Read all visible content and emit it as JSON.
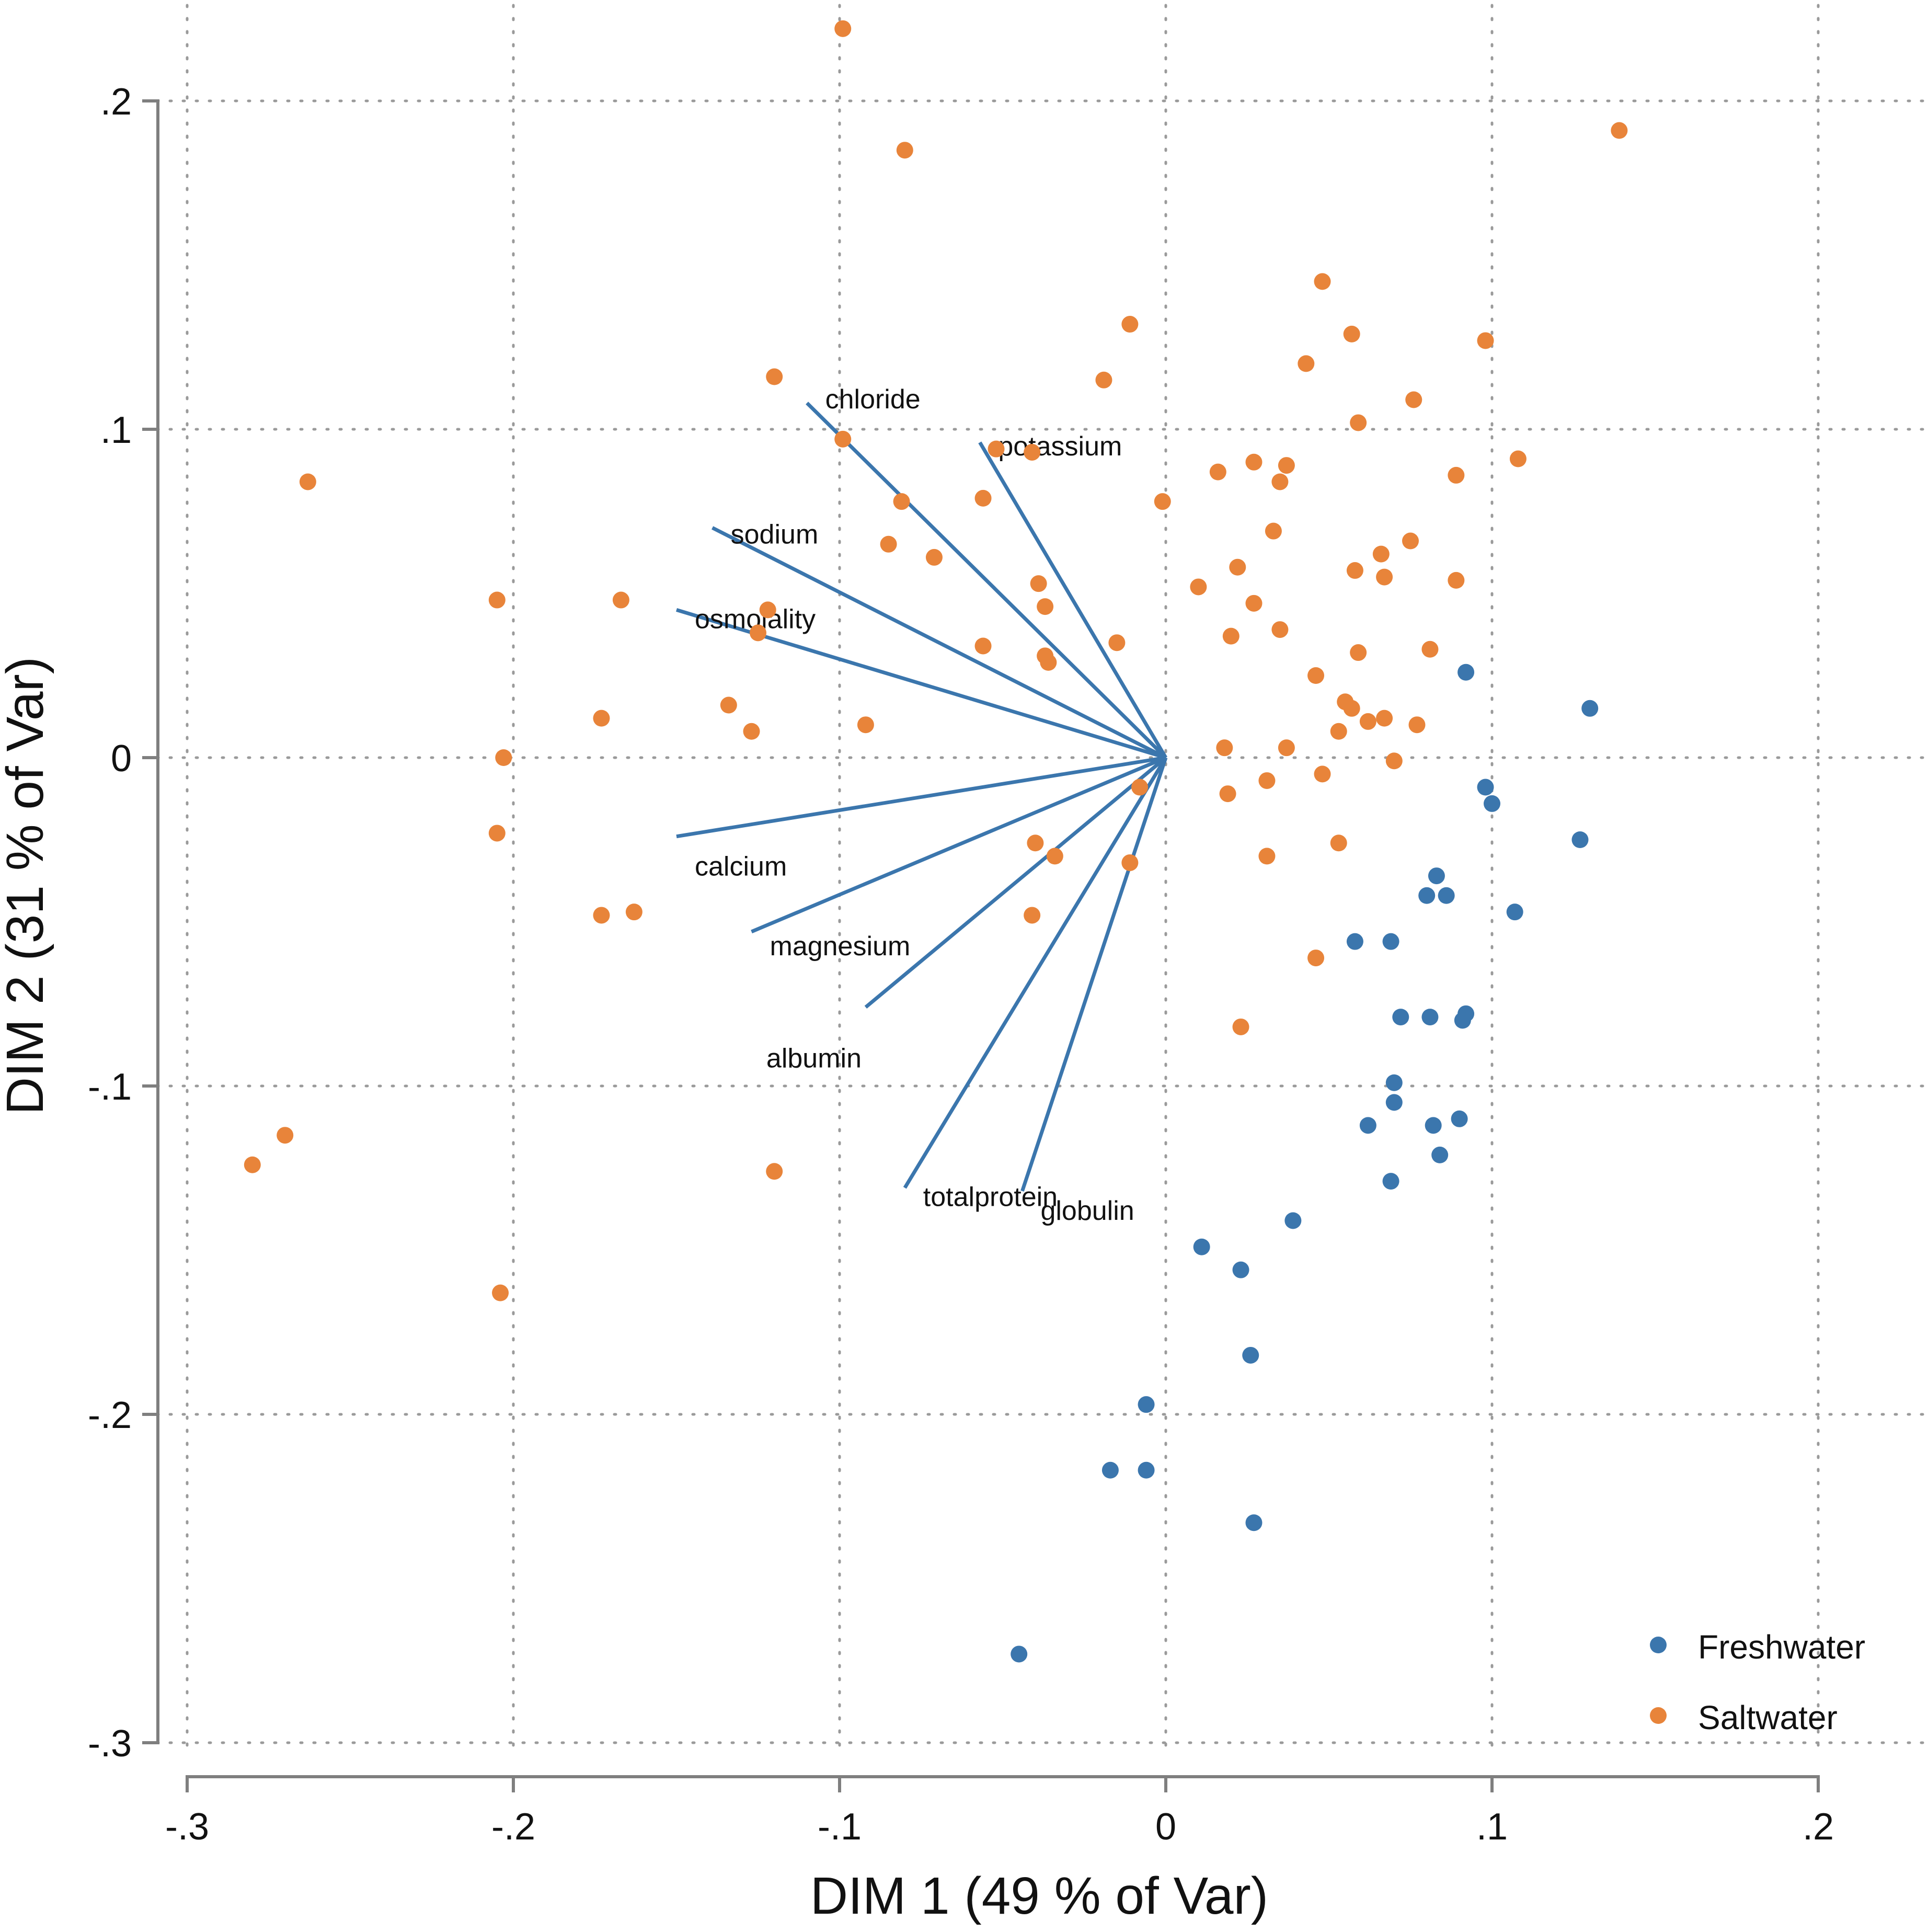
{
  "chart_data": {
    "type": "scatter",
    "subtype": "biplot",
    "xlabel": "DIM 1 (49 % of Var)",
    "ylabel": "DIM 2 (31 % of Var)",
    "xlim": [
      -0.3,
      0.2
    ],
    "ylim": [
      -0.3,
      0.2
    ],
    "x_ticks": [
      {
        "value": -0.3,
        "label": "-.3"
      },
      {
        "value": -0.2,
        "label": "-.2"
      },
      {
        "value": -0.1,
        "label": "-.1"
      },
      {
        "value": 0,
        "label": "0"
      },
      {
        "value": 0.1,
        "label": ".1"
      },
      {
        "value": 0.2,
        "label": ".2"
      }
    ],
    "y_ticks": [
      {
        "value": 0.2,
        "label": ".2"
      },
      {
        "value": 0.1,
        "label": ".1"
      },
      {
        "value": 0,
        "label": "0"
      },
      {
        "value": -0.1,
        "label": "-.1"
      },
      {
        "value": -0.2,
        "label": "-.2"
      },
      {
        "value": -0.3,
        "label": "-.3"
      }
    ],
    "grid": true,
    "legend_position": "bottom-right",
    "loadings": [
      {
        "name": "chloride",
        "x": -0.11,
        "y": 0.108
      },
      {
        "name": "potassium",
        "x": -0.057,
        "y": 0.096
      },
      {
        "name": "sodium",
        "x": -0.139,
        "y": 0.07
      },
      {
        "name": "osmolality",
        "x": -0.15,
        "y": 0.045
      },
      {
        "name": "calcium",
        "x": -0.15,
        "y": -0.024
      },
      {
        "name": "magnesium",
        "x": -0.127,
        "y": -0.053
      },
      {
        "name": "albumin",
        "x": -0.092,
        "y": -0.076
      },
      {
        "name": "totalprotein",
        "x": -0.08,
        "y": -0.131
      },
      {
        "name": "globulin",
        "x": -0.044,
        "y": -0.132
      }
    ],
    "series": [
      {
        "name": "Freshwater",
        "color": "#3b76ad",
        "points": [
          [
            0.092,
            0.026
          ],
          [
            0.13,
            0.015
          ],
          [
            0.098,
            -0.009
          ],
          [
            0.1,
            -0.014
          ],
          [
            0.127,
            -0.025
          ],
          [
            0.083,
            -0.036
          ],
          [
            0.08,
            -0.042
          ],
          [
            0.086,
            -0.042
          ],
          [
            0.107,
            -0.047
          ],
          [
            0.058,
            -0.056
          ],
          [
            0.069,
            -0.056
          ],
          [
            0.072,
            -0.079
          ],
          [
            0.081,
            -0.079
          ],
          [
            0.092,
            -0.078
          ],
          [
            0.091,
            -0.08
          ],
          [
            0.07,
            -0.099
          ],
          [
            0.07,
            -0.105
          ],
          [
            0.062,
            -0.112
          ],
          [
            0.082,
            -0.112
          ],
          [
            0.09,
            -0.11
          ],
          [
            0.084,
            -0.121
          ],
          [
            0.069,
            -0.129
          ],
          [
            0.039,
            -0.141
          ],
          [
            0.011,
            -0.149
          ],
          [
            0.023,
            -0.156
          ],
          [
            0.026,
            -0.182
          ],
          [
            -0.006,
            -0.197
          ],
          [
            -0.017,
            -0.217
          ],
          [
            -0.006,
            -0.217
          ],
          [
            0.027,
            -0.233
          ],
          [
            -0.045,
            -0.273
          ]
        ]
      },
      {
        "name": "Saltwater",
        "color": "#e8843a",
        "points": [
          [
            -0.099,
            0.222
          ],
          [
            -0.08,
            0.185
          ],
          [
            0.139,
            0.191
          ],
          [
            -0.263,
            0.084
          ],
          [
            0.048,
            0.145
          ],
          [
            -0.011,
            0.132
          ],
          [
            0.057,
            0.129
          ],
          [
            0.098,
            0.127
          ],
          [
            -0.12,
            0.116
          ],
          [
            -0.019,
            0.115
          ],
          [
            0.043,
            0.12
          ],
          [
            0.076,
            0.109
          ],
          [
            0.059,
            0.102
          ],
          [
            -0.099,
            0.097
          ],
          [
            -0.052,
            0.094
          ],
          [
            -0.041,
            0.093
          ],
          [
            0.027,
            0.09
          ],
          [
            0.037,
            0.089
          ],
          [
            0.016,
            0.087
          ],
          [
            0.035,
            0.084
          ],
          [
            0.089,
            0.086
          ],
          [
            0.108,
            0.091
          ],
          [
            -0.081,
            0.078
          ],
          [
            -0.056,
            0.079
          ],
          [
            -0.001,
            0.078
          ],
          [
            0.033,
            0.069
          ],
          [
            -0.085,
            0.065
          ],
          [
            -0.071,
            0.061
          ],
          [
            0.066,
            0.062
          ],
          [
            0.075,
            0.066
          ],
          [
            0.022,
            0.058
          ],
          [
            0.058,
            0.057
          ],
          [
            0.067,
            0.055
          ],
          [
            0.089,
            0.054
          ],
          [
            -0.039,
            0.053
          ],
          [
            0.01,
            0.052
          ],
          [
            -0.205,
            0.048
          ],
          [
            -0.167,
            0.048
          ],
          [
            -0.037,
            0.046
          ],
          [
            0.027,
            0.047
          ],
          [
            -0.122,
            0.045
          ],
          [
            -0.125,
            0.038
          ],
          [
            0.02,
            0.037
          ],
          [
            0.035,
            0.039
          ],
          [
            -0.056,
            0.034
          ],
          [
            -0.015,
            0.035
          ],
          [
            -0.037,
            0.031
          ],
          [
            -0.036,
            0.029
          ],
          [
            0.059,
            0.032
          ],
          [
            0.081,
            0.033
          ],
          [
            0.046,
            0.025
          ],
          [
            -0.134,
            0.016
          ],
          [
            0.055,
            0.017
          ],
          [
            0.057,
            0.015
          ],
          [
            -0.173,
            0.012
          ],
          [
            0.062,
            0.011
          ],
          [
            0.067,
            0.012
          ],
          [
            0.077,
            0.01
          ],
          [
            -0.127,
            0.008
          ],
          [
            -0.092,
            0.01
          ],
          [
            0.053,
            0.008
          ],
          [
            0.018,
            0.003
          ],
          [
            0.037,
            0.003
          ],
          [
            -0.203,
            0.0
          ],
          [
            0.07,
            -0.001
          ],
          [
            -0.008,
            -0.009
          ],
          [
            0.031,
            -0.007
          ],
          [
            0.048,
            -0.005
          ],
          [
            0.019,
            -0.011
          ],
          [
            -0.205,
            -0.023
          ],
          [
            -0.04,
            -0.026
          ],
          [
            0.053,
            -0.026
          ],
          [
            -0.034,
            -0.03
          ],
          [
            0.031,
            -0.03
          ],
          [
            -0.011,
            -0.032
          ],
          [
            -0.173,
            -0.048
          ],
          [
            -0.163,
            -0.047
          ],
          [
            -0.041,
            -0.048
          ],
          [
            0.046,
            -0.061
          ],
          [
            0.023,
            -0.082
          ],
          [
            -0.28,
            -0.124
          ],
          [
            -0.27,
            -0.115
          ],
          [
            -0.12,
            -0.126
          ],
          [
            -0.204,
            -0.163
          ]
        ]
      }
    ]
  }
}
